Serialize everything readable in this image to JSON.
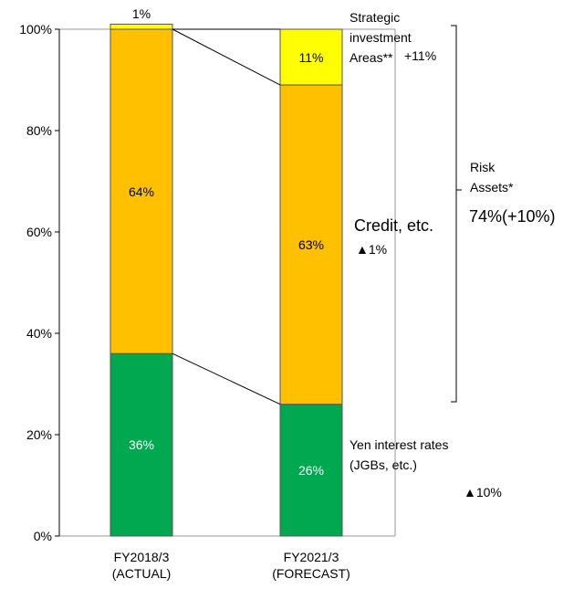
{
  "chart_data": {
    "type": "stacked_bar",
    "categories": [
      "FY2018/3 (ACTUAL)",
      "FY2021/3 (FORECAST)"
    ],
    "series": [
      {
        "name": "Yen interest rates (JGBs, etc.)",
        "color": "#00a84f",
        "label_color": "#ffffff",
        "values": [
          36,
          26
        ],
        "value_labels": [
          "36%",
          "26%"
        ],
        "change": "▲10%"
      },
      {
        "name": "Credit, etc.",
        "color": "#ffc000",
        "label_color": "#000000",
        "values": [
          64,
          63
        ],
        "value_labels": [
          "64%",
          "63%"
        ],
        "change": "▲1%"
      },
      {
        "name": "Strategic investment Areas**",
        "color": "#ffff00",
        "label_color": "#000000",
        "values": [
          1,
          11
        ],
        "value_labels": [
          "1%",
          "11%"
        ],
        "change": "+11%"
      }
    ],
    "bracket": {
      "label": "Risk Assets*",
      "value_label": "74%(+10%)"
    },
    "ylim": [
      0,
      100
    ],
    "yticks": [
      {
        "value": 0,
        "label": "0%"
      },
      {
        "value": 20,
        "label": "20%"
      },
      {
        "value": 40,
        "label": "40%"
      },
      {
        "value": 60,
        "label": "60%"
      },
      {
        "value": 80,
        "label": "80%"
      },
      {
        "value": 100,
        "label": "100%"
      }
    ],
    "grid": false
  }
}
